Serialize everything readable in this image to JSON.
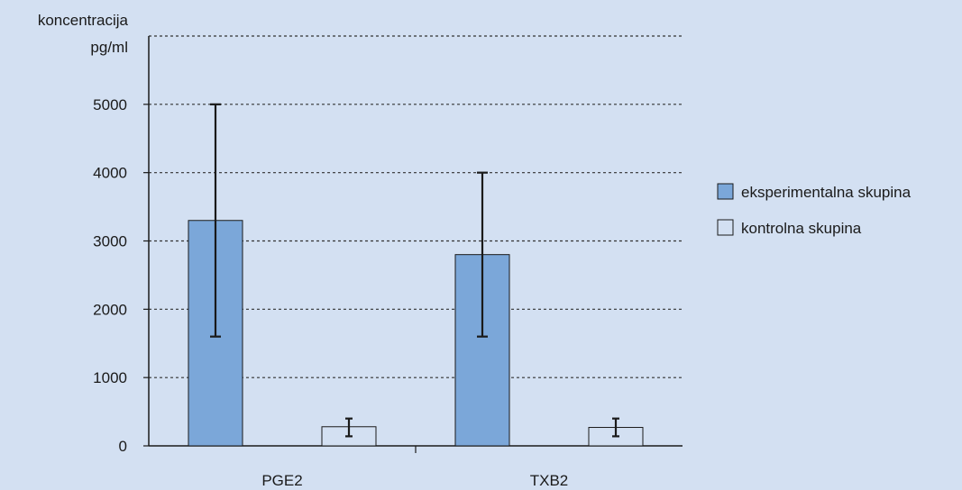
{
  "chart_data": {
    "type": "bar",
    "ylabel_lines": [
      "koncentracija",
      "pg/ml"
    ],
    "xlabel": "",
    "categories": [
      "PGE2",
      "TXB2"
    ],
    "ylim": [
      0,
      6000
    ],
    "yticks": [
      0,
      1000,
      2000,
      3000,
      4000,
      5000
    ],
    "grid": true,
    "legend_position": "right",
    "series": [
      {
        "name": "eksperimentalna skupina",
        "color": "#7ba7d9",
        "values": [
          3300,
          2800
        ],
        "error_low": [
          1600,
          1600
        ],
        "error_high": [
          5000,
          4000
        ]
      },
      {
        "name": "kontrolna skupina",
        "color": "#d3e0f2",
        "values": [
          280,
          270
        ],
        "error_low": [
          140,
          140
        ],
        "error_high": [
          400,
          400
        ]
      }
    ]
  },
  "colors": {
    "background": "#d3e0f2",
    "axis": "#1a1a1a",
    "grid": "#333333",
    "bar_outline": "#1a1a1a"
  }
}
